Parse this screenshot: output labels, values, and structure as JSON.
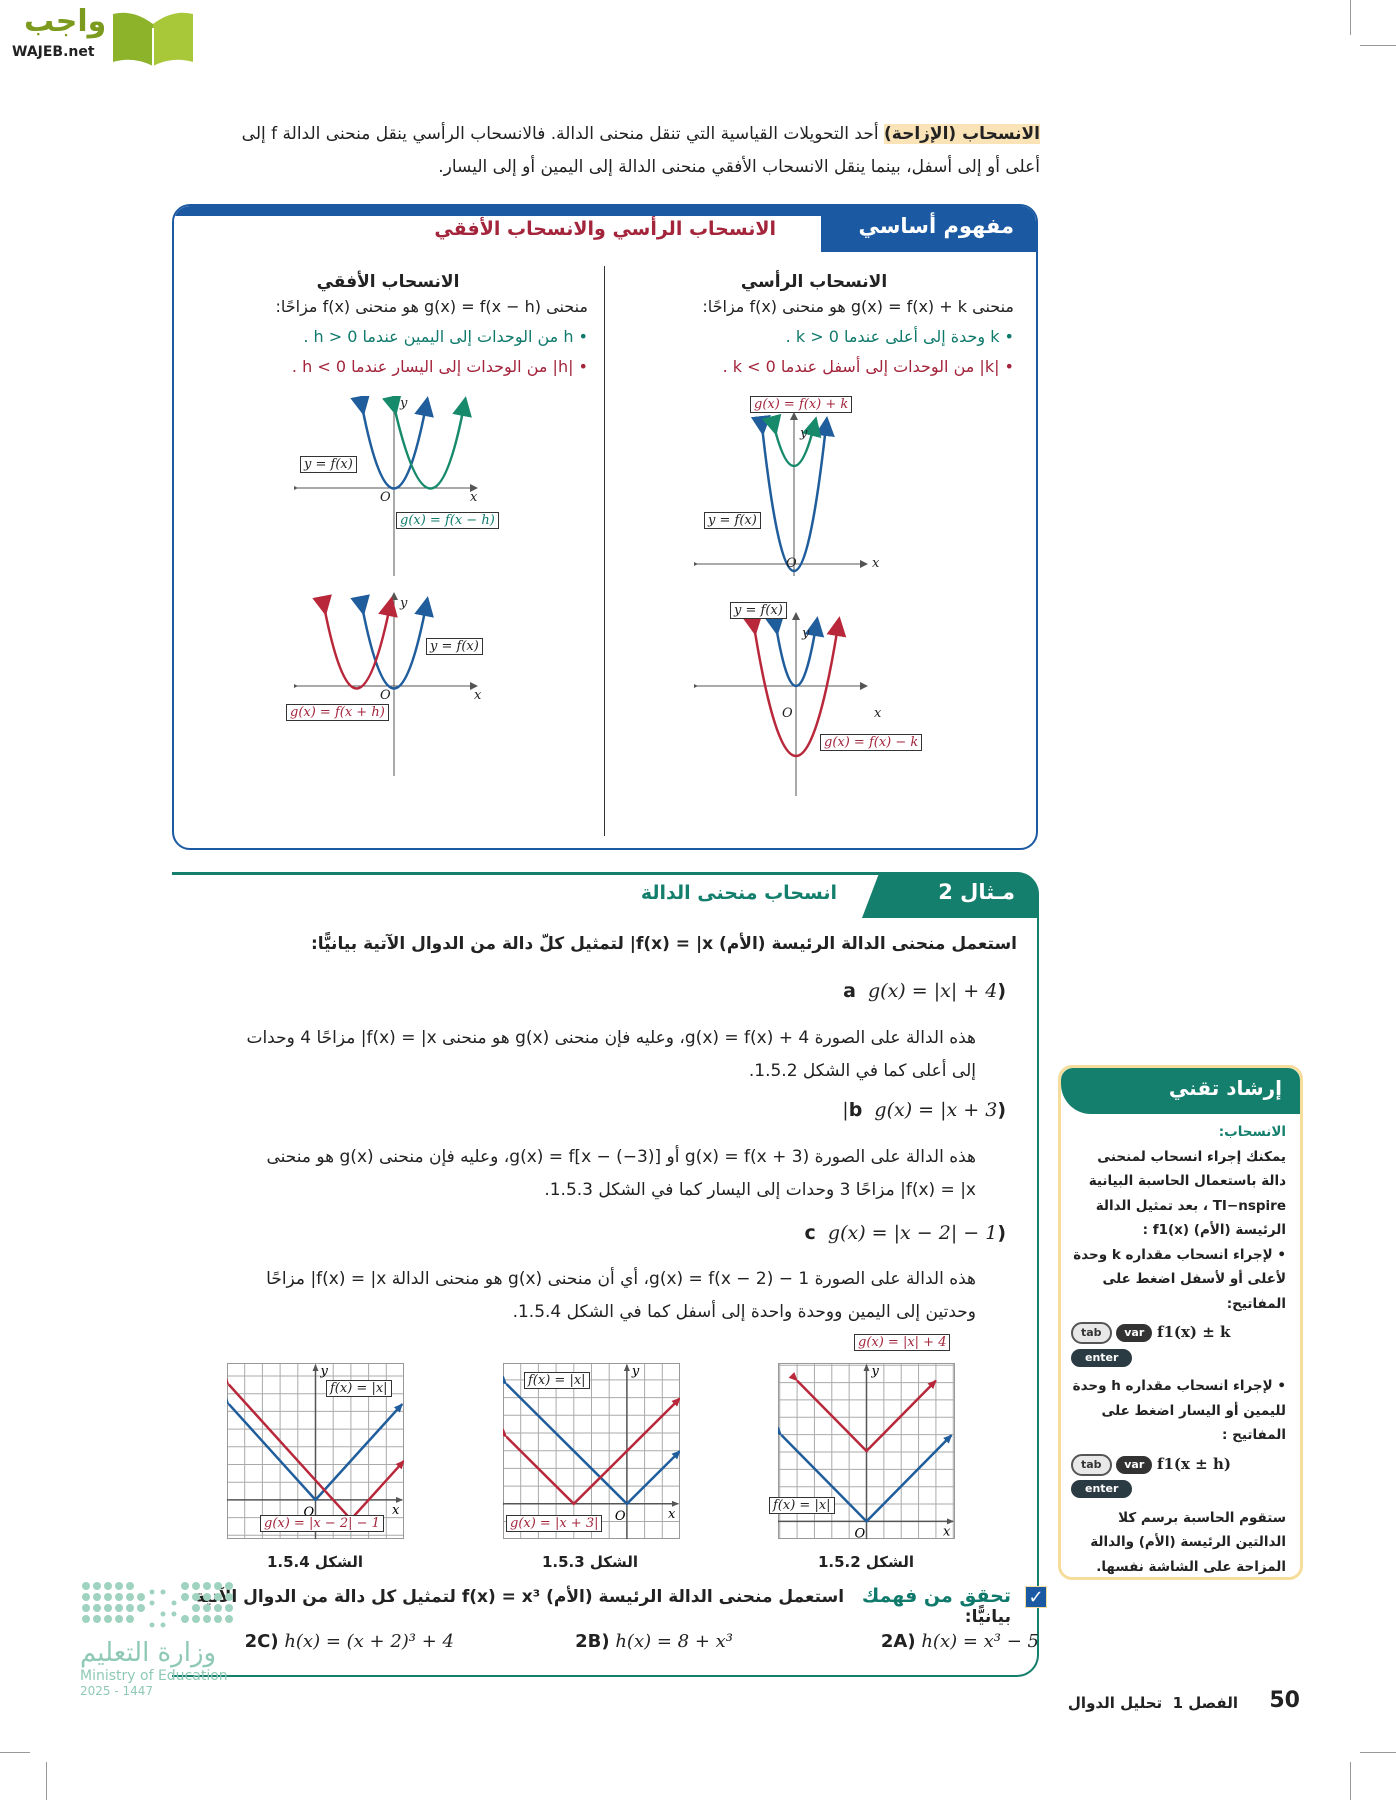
{
  "logo": {
    "arabic": "واجب",
    "latin": "WAJEB.net"
  },
  "intro": {
    "term": "الانسحاب (الإزاحة)",
    "line1": " أحد التحويلات القياسية التي تنقل منحنى الدالة. فالانسحاب الرأسي ينقل منحنى الدالة f إلى",
    "line2": "أعلى أو إلى أسفل، بينما ينقل الانسحاب الأفقي منحنى الدالة إلى اليمين أو إلى اليسار."
  },
  "concept": {
    "tab": "مفهوم أساسي",
    "title": "الانسحاب الرأسي والانسحاب الأفقي",
    "vertical": {
      "title": "الانسحاب الرأسي",
      "def": "منحنى g(x) = f(x) + k هو منحنى f(x) مزاحًا:",
      "b1": "• k وحدة إلى أعلى عندما k > 0 .",
      "b2": "• |k| من الوحدات إلى أسفل عندما k < 0 .",
      "lbl_top_g": "g(x) = f(x) + k",
      "lbl_top_f": "y = f(x)",
      "lbl_bot_f": "y = f(x)",
      "lbl_bot_g": "g(x) = f(x) − k"
    },
    "horizontal": {
      "title": "الانسحاب الأفقي",
      "def": "منحنى g(x) = f(x − h) هو منحنى f(x) مزاحًا:",
      "b1": "• h من الوحدات إلى اليمين عندما h > 0 .",
      "b2": "• |h| من الوحدات إلى اليسار عندما h < 0 .",
      "lbl_top_f": "y = f(x)",
      "lbl_top_g": "g(x) = f(x − h)",
      "lbl_bot_f": "y = f(x)",
      "lbl_bot_g": "g(x) = f(x + h)"
    },
    "axes": {
      "x": "x",
      "y": "y",
      "o": "O"
    }
  },
  "example": {
    "tab": "مـثال 2",
    "title": "انسحاب منحنى الدالة",
    "prompt": "استعمل منحنى الدالة الرئيسة (الأم) f(x) = |x| لتمثيل كلّ دالة من الدوال الآتية بيانيًّا:",
    "parts": [
      {
        "label": "(a",
        "eq": "g(x) = |x| + 4",
        "l1": "هذه الدالة على الصورة g(x) = f(x) + 4، وعليه فإن منحنى g(x) هو منحنى f(x) = |x| مزاحًا 4 وحدات",
        "l2": "إلى أعلى كما في الشكل 1.5.2."
      },
      {
        "label": "(b",
        "eq": "g(x) = |x + 3|",
        "l1": "هذه الدالة على الصورة g(x) = f(x + 3) أو g(x) = f[x − (−3)]، وعليه فإن منحنى g(x) هو منحنى",
        "l2": "f(x) = |x| مزاحًا 3 وحدات إلى اليسار كما في الشكل 1.5.3."
      },
      {
        "label": "(c",
        "eq": "g(x) = |x − 2| − 1",
        "l1": "هذه الدالة على الصورة g(x) = f(x − 2) − 1، أي أن منحنى g(x) هو منحنى الدالة f(x) = |x| مزاحًا",
        "l2": "وحدتين إلى اليمين ووحدة واحدة إلى أسفل كما في الشكل 1.5.4."
      }
    ]
  },
  "chart_data": [
    {
      "type": "line",
      "caption": "الشكل 1.5.2",
      "xlim": [
        -5.1,
        5.1
      ],
      "ylim": [
        -1,
        9
      ],
      "grid": true,
      "series": [
        {
          "name": "f(x) = |x|",
          "color": "#1f5d9c",
          "h": 0,
          "k": 0,
          "x": [
            -4.9,
            4.9
          ]
        },
        {
          "name": "g(x) = |x| + 4",
          "color": "#b8283a",
          "h": 0,
          "k": 4,
          "x": [
            -4,
            4
          ]
        }
      ]
    },
    {
      "type": "line",
      "caption": "الشكل 1.5.3",
      "xlim": [
        -7,
        3
      ],
      "ylim": [
        -2,
        8
      ],
      "grid": true,
      "series": [
        {
          "name": "f(x) = |x|",
          "color": "#1f5d9c",
          "h": 0,
          "k": 0,
          "x": [
            -6.8,
            3
          ]
        },
        {
          "name": "g(x) = |x + 3|",
          "color": "#b8283a",
          "h": -3,
          "k": 0,
          "x": [
            -6.8,
            3
          ]
        }
      ]
    },
    {
      "type": "line",
      "caption": "الشكل 1.5.4",
      "xlim": [
        -5,
        5
      ],
      "ylim": [
        -2,
        7
      ],
      "grid": true,
      "series": [
        {
          "name": "f(x) = |x|",
          "color": "#1f5d9c",
          "h": 0,
          "k": 0,
          "x": [
            -4.9,
            4.9
          ]
        },
        {
          "name": "g(x) = |x − 2| − 1",
          "color": "#b8283a",
          "h": 2,
          "k": -1,
          "x": [
            -4.9,
            5
          ]
        }
      ]
    }
  ],
  "check": {
    "title": "تحقق من فهمك",
    "prompt": "استعمل منحنى الدالة الرئيسة (الأم) f(x) = x³ لتمثيل كل دالة من الدوال الآتية بيانيًّا:",
    "items": [
      {
        "label": "2A)",
        "eq": "h(x) = x³ − 5"
      },
      {
        "label": "2B)",
        "eq": "h(x) = 8 + x³"
      },
      {
        "label": "2C)",
        "eq": "h(x) = (x + 2)³ + 4"
      }
    ]
  },
  "tech": {
    "title": "إرشاد تقني",
    "sub": "الانسحاب:",
    "p1": "يمكنك إجراء انسحاب لمنحنى دالة باستعمال الحاسبة البيانية TI−nspire ، بعد تمثيل الدالة الرئيسة (الأم) f1(x) :",
    "p2": "• لإجراء انسحاب مقداره k وحدة لأعلى أو لأسفل اضغط على المفاتيح:",
    "keys1": "f1(x) ± k",
    "p3": "• لإجراء انسحاب مقداره h وحدة لليمين أو اليسار اضغط على المفاتيح :",
    "keys2": "f1(x ± h)",
    "p4": "ستقوم الحاسبة برسم كلا الدالتين الرئيسة (الأم) والدالة المزاحة على الشاشة نفسها.",
    "key_tab": "tab",
    "key_var": "var",
    "key_enter": "enter"
  },
  "footer": {
    "page": "50",
    "chapter": "الفصل 1",
    "chapter_title": "تحليل الدوال"
  },
  "ministry": {
    "arabic": "وزارة التعليم",
    "english": "Ministry of Education",
    "year": "2025 - 1447"
  },
  "colors": {
    "blue": "#1b5aa3",
    "teal": "#157f6d",
    "red": "#b8283a",
    "graph_blue": "#1f5d9c"
  }
}
